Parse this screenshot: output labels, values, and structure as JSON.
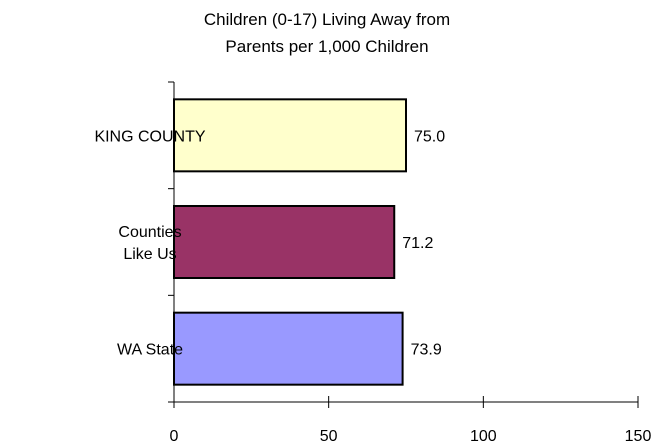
{
  "chart_data": {
    "type": "bar",
    "orientation": "horizontal",
    "title_lines": [
      "Children (0-17) Living Away from",
      "Parents per 1,000 Children"
    ],
    "categories": [
      {
        "lines": [
          "KING COUNTY"
        ]
      },
      {
        "lines": [
          "Counties",
          "Like Us"
        ]
      },
      {
        "lines": [
          "WA State"
        ]
      }
    ],
    "values": [
      75.0,
      71.2,
      73.9
    ],
    "value_labels": [
      "75.0",
      "71.2",
      "73.9"
    ],
    "colors": [
      "#FFFFCC",
      "#993366",
      "#9999FF"
    ],
    "xlim": [
      0,
      150
    ],
    "xticks": [
      "0",
      "50",
      "100",
      "150"
    ],
    "grid": false,
    "legend": "none"
  }
}
